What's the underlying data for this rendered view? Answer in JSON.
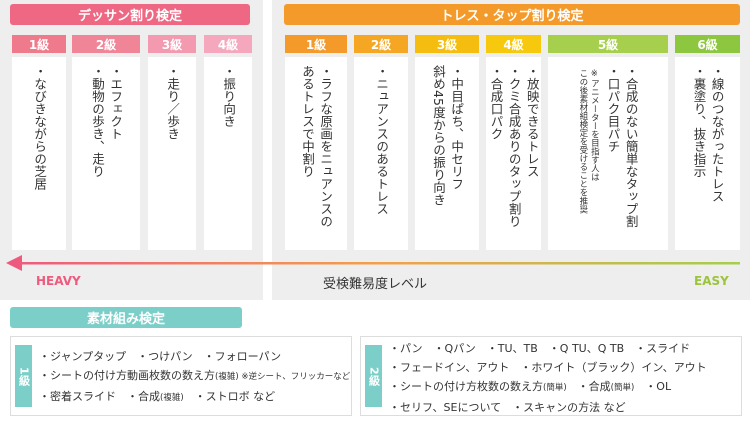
{
  "dessan": {
    "title": "デッサン割り検定",
    "grades": [
      {
        "label": "1級",
        "items": [
          "・なびきながらの芝居"
        ]
      },
      {
        "label": "2級",
        "items": [
          "・エフェクト",
          "・動物の歩き、走り"
        ]
      },
      {
        "label": "3級",
        "items": [
          "・走り／歩き"
        ]
      },
      {
        "label": "4級",
        "items": [
          "・振り向き"
        ]
      }
    ]
  },
  "trace": {
    "title": "トレス・タップ割り検定",
    "grades": [
      {
        "label": "1級",
        "items": [
          "・ラフな原画をニュアンスの",
          "あるトレスで中割り"
        ]
      },
      {
        "label": "2級",
        "items": [
          "・ニュアンスのあるトレス"
        ]
      },
      {
        "label": "3級",
        "items": [
          "・中目ぱち、中セリフ",
          "斜め45度からの振り向き"
        ]
      },
      {
        "label": "4級",
        "items": [
          "・放映できるトレス",
          "・クミ合成ありのタップ割り",
          "・合成口パク"
        ]
      },
      {
        "label": "5級",
        "items": [
          "・合成のない簡単なタップ割",
          "・口パク目パチ"
        ],
        "note": [
          "※アニメーターを目指す人は",
          "この後素材組検定を受けることを推奨"
        ]
      },
      {
        "label": "6級",
        "items": [
          "・線のつながったトレス",
          "・裏塗り、抜き指示"
        ]
      }
    ]
  },
  "difficulty": {
    "heavy": "HEAVY",
    "label": "受検難易度レベル",
    "easy": "EASY"
  },
  "sozai": {
    "title": "素材組み検定",
    "boxes": [
      {
        "label": "1級",
        "lines": [
          [
            {
              "text": "・ジャンプタップ　・つけパン　・フォローパン"
            }
          ],
          [
            {
              "text": "・シートの付け方動画枚数の数え方"
            },
            {
              "text": "(複雑)",
              "small": true
            },
            {
              "text": " ※逆シート、フリッカーなど",
              "small": true
            }
          ],
          [
            {
              "text": "・密着スライド　・合成"
            },
            {
              "text": "(複雑)",
              "small": true
            },
            {
              "text": "　・ストロボ など"
            }
          ]
        ]
      },
      {
        "label": "2級",
        "lines": [
          [
            {
              "text": "・パン　・Qパン　・TU、TB　・Q TU、Q TB　・スライド"
            }
          ],
          [
            {
              "text": "・フェードイン、アウト　・ホワイト（ブラック）イン、アウト"
            }
          ],
          [
            {
              "text": "・シートの付け方枚数の数え方"
            },
            {
              "text": "(簡単)",
              "small": true
            },
            {
              "text": "　・合成"
            },
            {
              "text": "(簡単)",
              "small": true
            },
            {
              "text": "　・OL"
            }
          ],
          [
            {
              "text": "・セリフ、SEについて　・スキャンの方法 など"
            }
          ]
        ]
      }
    ]
  }
}
